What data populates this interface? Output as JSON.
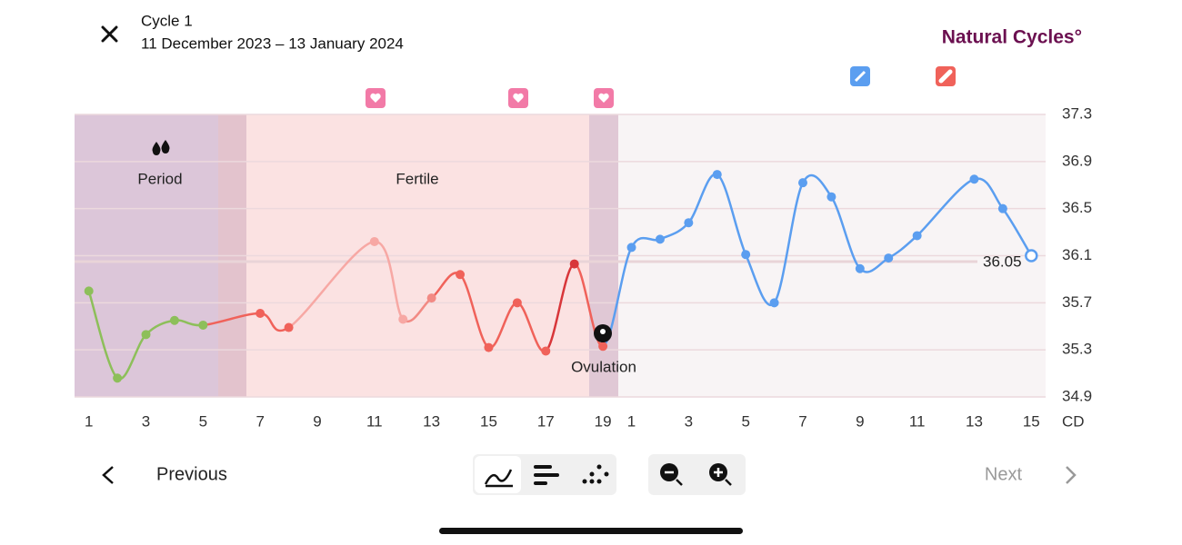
{
  "header": {
    "title": "Cycle 1",
    "dates": "11 December 2023 – 13 January 2024",
    "brand": "Natural Cycles°"
  },
  "chart_data": {
    "type": "line",
    "phases": {
      "period": "Period",
      "fertile": "Fertile",
      "ovulation": "Ovulation"
    },
    "x": [
      1,
      2,
      3,
      4,
      5,
      7,
      8,
      11,
      12,
      13,
      14,
      15,
      16,
      17,
      18,
      19,
      20,
      21,
      22,
      23,
      24,
      25,
      26,
      27,
      28,
      29,
      30,
      32,
      33,
      34
    ],
    "series": [
      {
        "values": [
          35.8,
          35.06,
          35.43,
          35.55,
          35.51,
          35.61,
          35.49,
          36.22,
          35.56,
          35.74,
          35.94,
          35.32,
          35.7,
          35.29,
          36.03,
          35.33,
          36.17,
          36.24,
          36.38,
          36.79,
          36.11,
          35.7,
          36.72,
          36.6,
          35.99,
          36.08,
          36.27,
          36.75,
          36.5,
          36.1
        ],
        "colors": [
          "#8dbf5a",
          "#8dbf5a",
          "#8dbf5a",
          "#8dbf5a",
          "#8dbf5a",
          "#f0625a",
          "#f0625a",
          "#f7a8a4",
          "#f7a8a4",
          "#f28a84",
          "#f0625a",
          "#f0625a",
          "#f0625a",
          "#f0625a",
          "#d8363a",
          "#f0625a",
          "#5b9ef0",
          "#5b9ef0",
          "#5b9ef0",
          "#5b9ef0",
          "#5b9ef0",
          "#5b9ef0",
          "#5b9ef0",
          "#5b9ef0",
          "#5b9ef0",
          "#5b9ef0",
          "#5b9ef0",
          "#5b9ef0",
          "#5b9ef0",
          "#5b9ef0"
        ]
      }
    ],
    "cover_line": 36.05,
    "xlim": [
      0.5,
      34.5
    ],
    "xticks": [
      1,
      3,
      5,
      7,
      9,
      11,
      13,
      15,
      17,
      19,
      {
        "value": 20,
        "label": "1"
      },
      {
        "value": 22,
        "label": "3"
      },
      {
        "value": 24,
        "label": "5"
      },
      {
        "value": 26,
        "label": "7"
      },
      {
        "value": 28,
        "label": "9"
      },
      {
        "value": 30,
        "label": "11"
      },
      {
        "value": 32,
        "label": "13"
      },
      {
        "value": 34,
        "label": "15"
      }
    ],
    "x_axis_label": "CD",
    "ylim": [
      34.9,
      37.3
    ],
    "yticks": [
      34.9,
      35.3,
      35.7,
      36.1,
      36.5,
      36.9,
      37.3
    ],
    "grid": true
  },
  "nav": {
    "previous": "Previous",
    "next": "Next"
  }
}
